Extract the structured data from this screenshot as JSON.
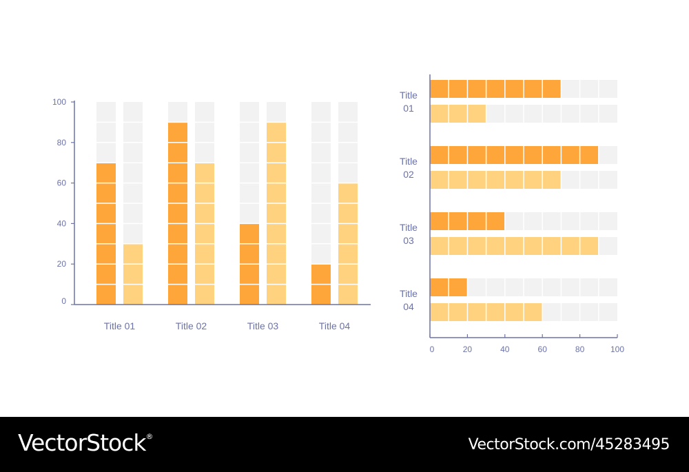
{
  "colors": {
    "primary": "#ffa63b",
    "secondary": "#ffd27f",
    "track": "#f2f2f2",
    "axis": "#6b72a8"
  },
  "chart_data": [
    {
      "type": "bar",
      "orientation": "vertical",
      "categories": [
        "Title 01",
        "Title 02",
        "Title 03",
        "Title 04"
      ],
      "series": [
        {
          "values": [
            70,
            90,
            40,
            20
          ]
        },
        {
          "values": [
            30,
            70,
            90,
            60
          ]
        }
      ],
      "ylim": [
        0,
        100
      ],
      "yticks": [
        0,
        20,
        40,
        60,
        80,
        100
      ],
      "grid": false
    },
    {
      "type": "bar",
      "orientation": "horizontal",
      "categories": [
        [
          "Title",
          "01"
        ],
        [
          "Title",
          "02"
        ],
        [
          "Title",
          "03"
        ],
        [
          "Title",
          "04"
        ]
      ],
      "series": [
        {
          "values": [
            70,
            90,
            40,
            20
          ]
        },
        {
          "values": [
            30,
            70,
            90,
            60
          ]
        }
      ],
      "xlim": [
        0,
        100
      ],
      "xticks": [
        0,
        20,
        40,
        60,
        80,
        100
      ],
      "grid": false
    }
  ],
  "footer": {
    "brand": "VectorStock",
    "brand_mark": "®",
    "url": "VectorStock.com/45283495"
  }
}
